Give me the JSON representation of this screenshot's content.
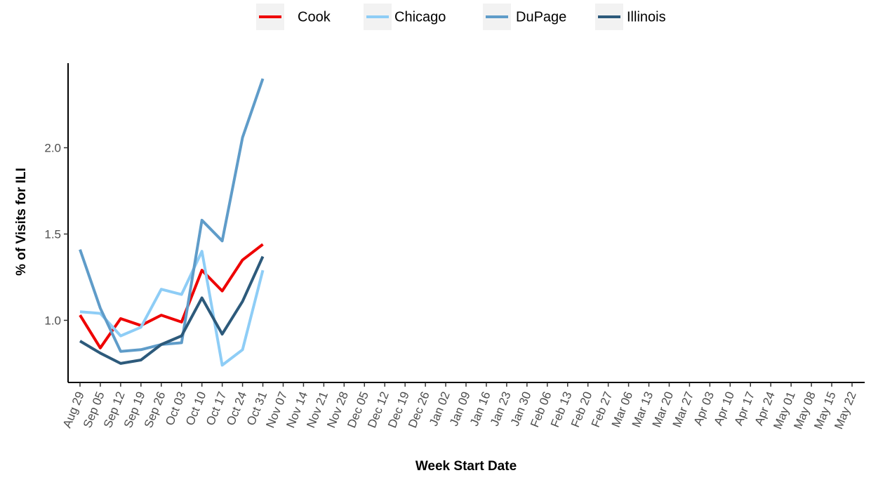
{
  "chart_data": {
    "type": "line",
    "x_label": "Week Start Date",
    "y_label": "% of Visits for ILI",
    "categories": [
      "Aug 29",
      "Sep 05",
      "Sep 12",
      "Sep 19",
      "Sep 26",
      "Oct 03",
      "Oct 10",
      "Oct 17",
      "Oct 24",
      "Oct 31",
      "Nov 07",
      "Nov 14",
      "Nov 21",
      "Nov 28",
      "Dec 05",
      "Dec 12",
      "Dec 19",
      "Dec 26",
      "Jan 02",
      "Jan 09",
      "Jan 16",
      "Jan 23",
      "Jan 30",
      "Feb 06",
      "Feb 13",
      "Feb 20",
      "Feb 27",
      "Mar 06",
      "Mar 13",
      "Mar 20",
      "Mar 27",
      "Apr 03",
      "Apr 10",
      "Apr 17",
      "Apr 24",
      "May 01",
      "May 08",
      "May 15",
      "May 22"
    ],
    "series": [
      {
        "name": "Cook",
        "color": "#ee0000",
        "values": [
          1.03,
          0.84,
          1.01,
          0.97,
          1.03,
          0.99,
          1.29,
          1.17,
          1.35,
          1.44,
          null,
          null,
          null,
          null,
          null,
          null,
          null,
          null,
          null,
          null,
          null,
          null,
          null,
          null,
          null,
          null,
          null,
          null,
          null,
          null,
          null,
          null,
          null,
          null,
          null,
          null,
          null,
          null,
          null
        ]
      },
      {
        "name": "Chicago",
        "color": "#8ecdf6",
        "values": [
          1.05,
          1.04,
          0.91,
          0.96,
          1.18,
          1.15,
          1.4,
          0.74,
          0.83,
          1.29,
          null,
          null,
          null,
          null,
          null,
          null,
          null,
          null,
          null,
          null,
          null,
          null,
          null,
          null,
          null,
          null,
          null,
          null,
          null,
          null,
          null,
          null,
          null,
          null,
          null,
          null,
          null,
          null,
          null
        ]
      },
      {
        "name": "DuPage",
        "color": "#5f9cc9",
        "values": [
          1.41,
          1.07,
          0.82,
          0.83,
          0.86,
          0.87,
          1.58,
          1.46,
          2.06,
          2.4,
          null,
          null,
          null,
          null,
          null,
          null,
          null,
          null,
          null,
          null,
          null,
          null,
          null,
          null,
          null,
          null,
          null,
          null,
          null,
          null,
          null,
          null,
          null,
          null,
          null,
          null,
          null,
          null,
          null
        ]
      },
      {
        "name": "Illinois",
        "color": "#2d5a7b",
        "values": [
          0.88,
          0.81,
          0.75,
          0.77,
          0.86,
          0.91,
          1.13,
          0.92,
          1.11,
          1.37,
          null,
          null,
          null,
          null,
          null,
          null,
          null,
          null,
          null,
          null,
          null,
          null,
          null,
          null,
          null,
          null,
          null,
          null,
          null,
          null,
          null,
          null,
          null,
          null,
          null,
          null,
          null,
          null,
          null
        ]
      }
    ],
    "ylim": [
      0.64,
      2.49
    ],
    "yticks": [
      {
        "value": 1,
        "label": "1.0"
      },
      1.5,
      {
        "value": 2,
        "label": "2.0"
      }
    ],
    "legend_position": "top"
  }
}
